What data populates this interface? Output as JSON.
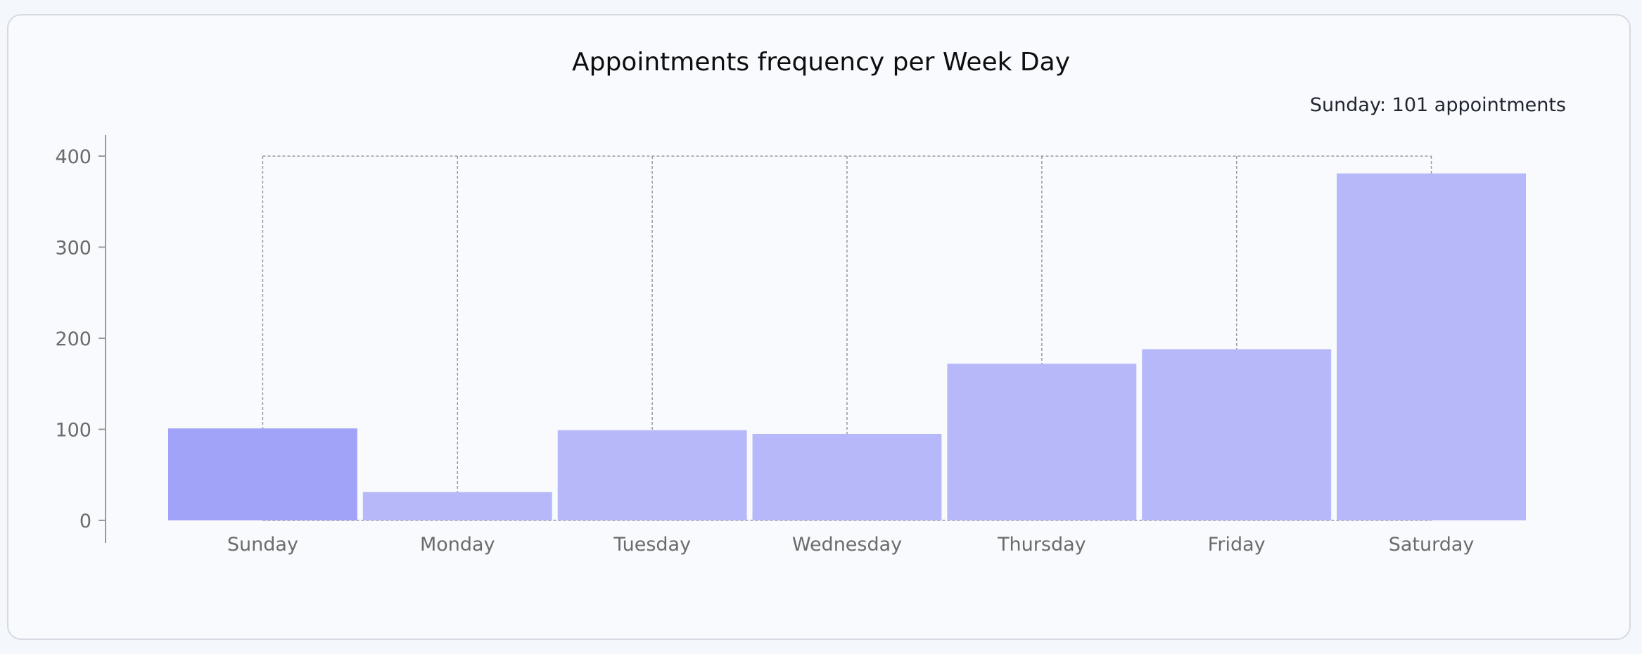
{
  "chart_data": {
    "type": "bar",
    "title": "Appointments frequency per Week Day",
    "categories": [
      "Sunday",
      "Monday",
      "Tuesday",
      "Wednesday",
      "Thursday",
      "Friday",
      "Saturday"
    ],
    "values": [
      101,
      31,
      99,
      95,
      172,
      188,
      381
    ],
    "ylim": [
      0,
      400
    ],
    "yticks": [
      0,
      100,
      200,
      300,
      400
    ],
    "xlabel": "",
    "ylabel": "",
    "grid": "dashed-verticals",
    "highlighted_category": "Sunday",
    "colors": {
      "bar": "#b6b8f9",
      "bar_active": "#a0a3f8",
      "grid": "#9a9a9a",
      "axis": "#9a9a9a"
    }
  },
  "tooltip": {
    "text": "Sunday: 101 appointments"
  }
}
